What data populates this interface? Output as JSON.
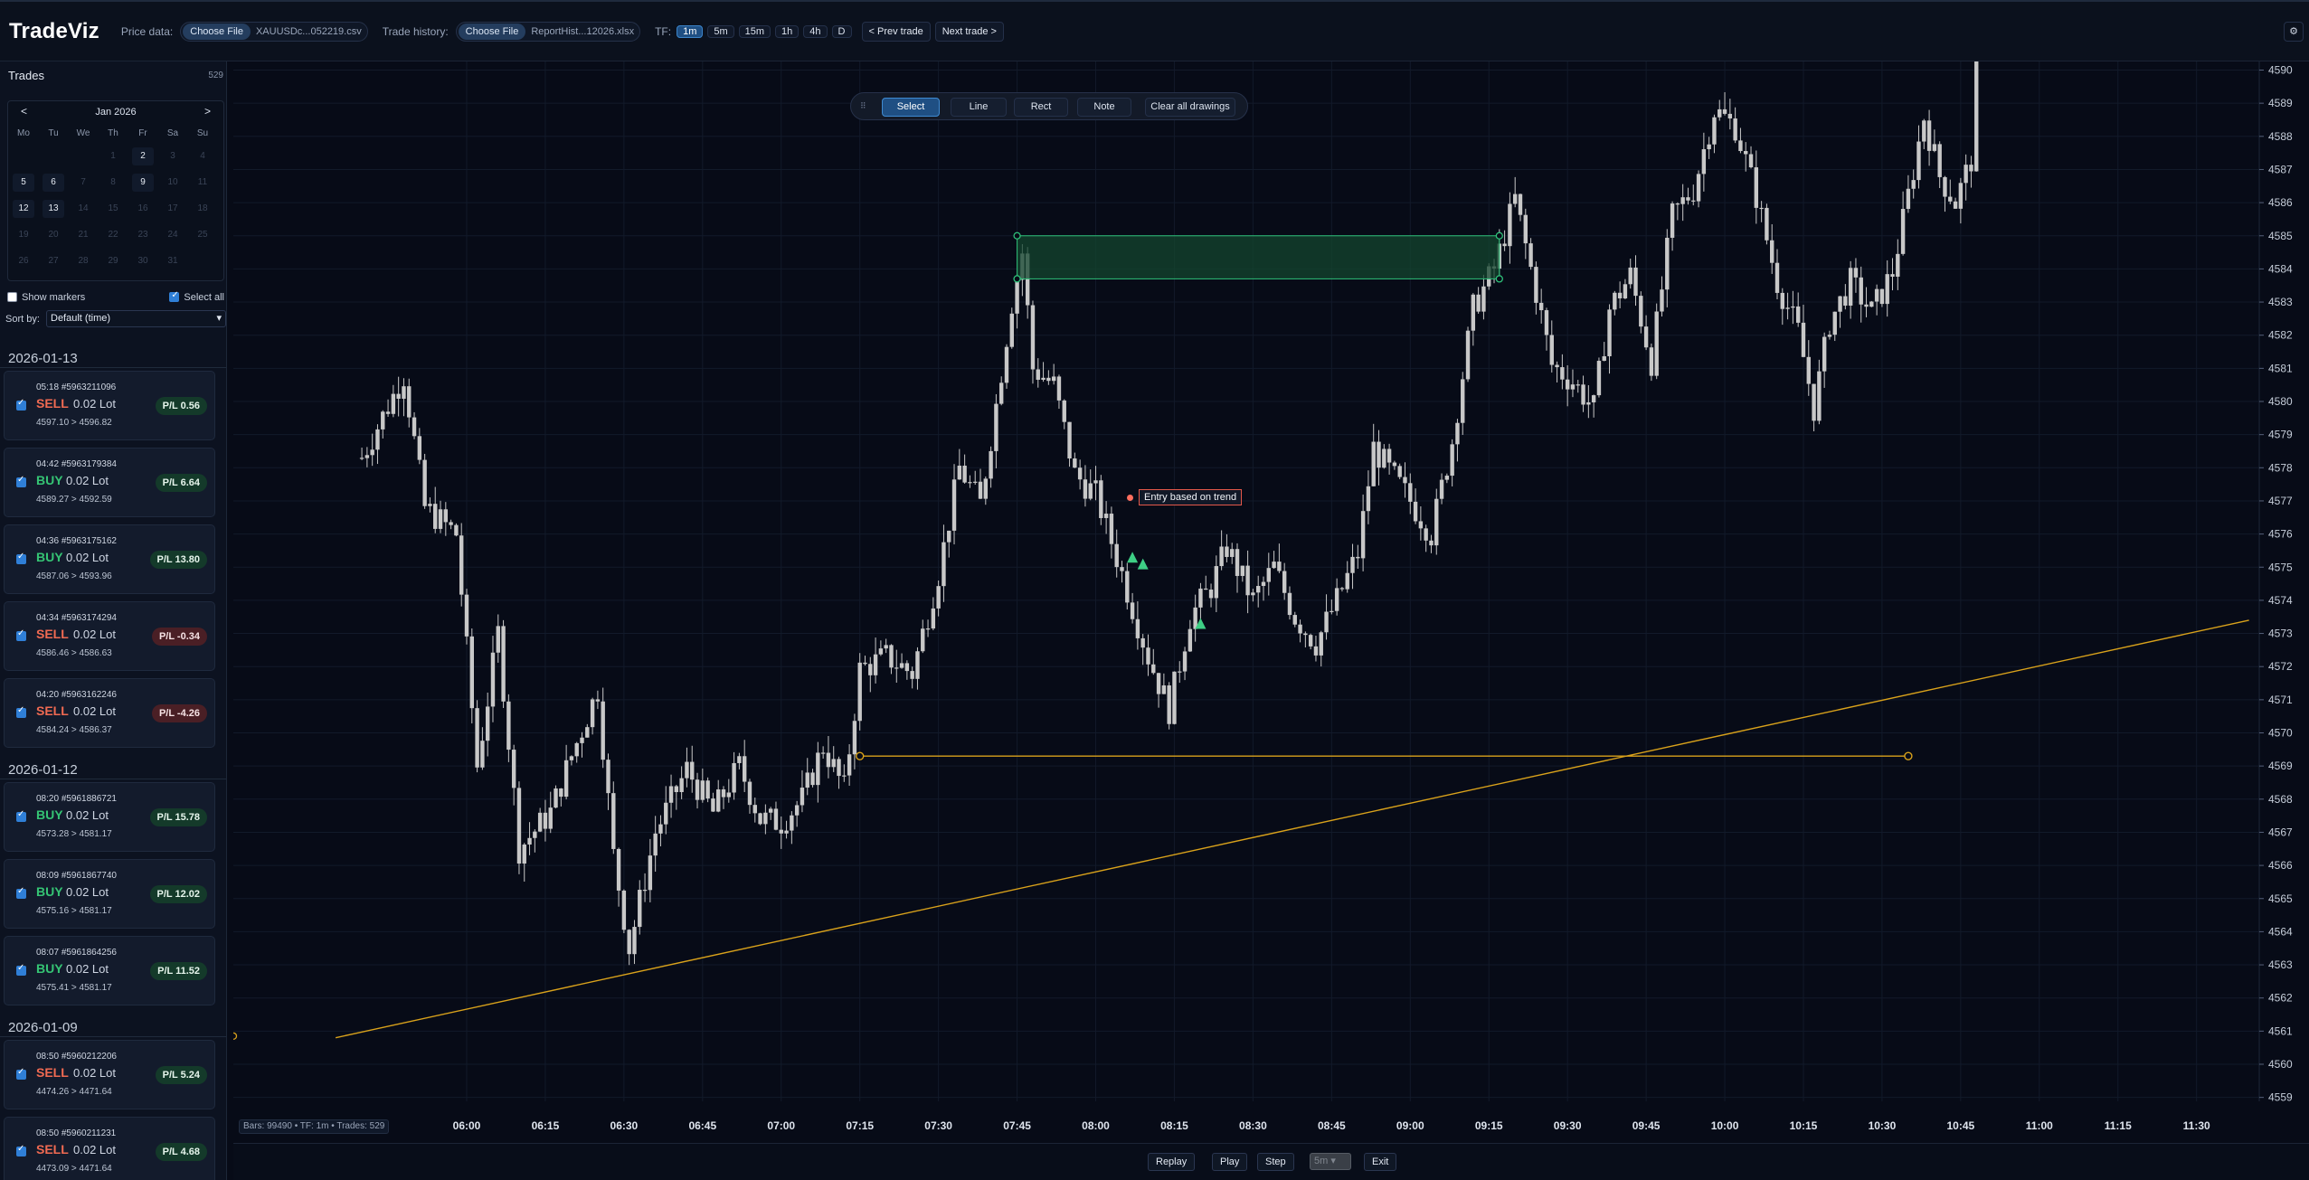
{
  "app": {
    "title": "TradeViz",
    "price_label": "Price data:",
    "price_file_button": "Choose File",
    "price_file_name": "XAUUSDc...052219.csv",
    "history_label": "Trade history:",
    "history_file_button": "Choose File",
    "history_file_name": "ReportHist...12026.xlsx",
    "tf_label": "TF:",
    "timeframes": [
      "1m",
      "5m",
      "15m",
      "1h",
      "4h",
      "D"
    ],
    "active_timeframe": "1m",
    "prev_trade": "< Prev trade",
    "next_trade": "Next trade >",
    "settings_icon": "gear-icon"
  },
  "sidebar": {
    "title": "Trades",
    "count": "529",
    "calendar": {
      "month": "Jan 2026",
      "prev": "<",
      "next": ">",
      "weekdays": [
        "Mo",
        "Tu",
        "We",
        "Th",
        "Fr",
        "Sa",
        "Su"
      ],
      "leading_blank_days": 3,
      "days_in_month": 31,
      "trade_days": [
        "2",
        "5",
        "6",
        "9",
        "12",
        "13"
      ]
    },
    "show_markers": "Show markers",
    "select_all": "Select all",
    "sort_label": "Sort by:",
    "sort_value": "Default (time)",
    "groups": [
      {
        "date": "2026-01-13",
        "trades": [
          {
            "time": "05:18",
            "id": "#5963211096",
            "side": "SELL",
            "lot": "0.02 Lot",
            "prices": "4597.10 > 4596.82",
            "pl": "P/L 0.56",
            "pl_sign": "pos"
          },
          {
            "time": "04:42",
            "id": "#5963179384",
            "side": "BUY",
            "lot": "0.02 Lot",
            "prices": "4589.27 > 4592.59",
            "pl": "P/L 6.64",
            "pl_sign": "pos"
          },
          {
            "time": "04:36",
            "id": "#5963175162",
            "side": "BUY",
            "lot": "0.02 Lot",
            "prices": "4587.06 > 4593.96",
            "pl": "P/L 13.80",
            "pl_sign": "pos"
          },
          {
            "time": "04:34",
            "id": "#5963174294",
            "side": "SELL",
            "lot": "0.02 Lot",
            "prices": "4586.46 > 4586.63",
            "pl": "P/L -0.34",
            "pl_sign": "neg"
          },
          {
            "time": "04:20",
            "id": "#5963162246",
            "side": "SELL",
            "lot": "0.02 Lot",
            "prices": "4584.24 > 4586.37",
            "pl": "P/L -4.26",
            "pl_sign": "neg"
          }
        ]
      },
      {
        "date": "2026-01-12",
        "trades": [
          {
            "time": "08:20",
            "id": "#5961886721",
            "side": "BUY",
            "lot": "0.02 Lot",
            "prices": "4573.28 > 4581.17",
            "pl": "P/L 15.78",
            "pl_sign": "pos"
          },
          {
            "time": "08:09",
            "id": "#5961867740",
            "side": "BUY",
            "lot": "0.02 Lot",
            "prices": "4575.16 > 4581.17",
            "pl": "P/L 12.02",
            "pl_sign": "pos"
          },
          {
            "time": "08:07",
            "id": "#5961864256",
            "side": "BUY",
            "lot": "0.02 Lot",
            "prices": "4575.41 > 4581.17",
            "pl": "P/L 11.52",
            "pl_sign": "pos"
          }
        ]
      },
      {
        "date": "2026-01-09",
        "trades": [
          {
            "time": "08:50",
            "id": "#5960212206",
            "side": "SELL",
            "lot": "0.02 Lot",
            "prices": "4474.26 > 4471.64",
            "pl": "P/L 5.24",
            "pl_sign": "pos"
          },
          {
            "time": "08:50",
            "id": "#5960211231",
            "side": "SELL",
            "lot": "0.02 Lot",
            "prices": "4473.09 > 4471.64",
            "pl": "P/L 4.68",
            "pl_sign": "pos"
          }
        ]
      }
    ]
  },
  "drawing_toolbar": {
    "handle": "⠿",
    "tools": [
      "Select",
      "Line",
      "Rect",
      "Note"
    ],
    "active_tool": "Select",
    "clear": "Clear all drawings"
  },
  "chart": {
    "status": "Bars: 99490 • TF: 1m • Trades: 529",
    "note_text": "Entry based on trend",
    "colors": {
      "candle": "#c8c8c8",
      "grid": "#121a2a",
      "trendline": "#d9a21b",
      "rect_fill": "#14462f",
      "rect_border": "#2fc27a",
      "marker": "#3ecf85",
      "note_border": "#e4584a"
    }
  },
  "chart_data": {
    "type": "candlestick",
    "x_unit": "time (1-minute bars)",
    "time_ticks": [
      "06:00",
      "06:15",
      "06:30",
      "06:45",
      "07:00",
      "07:15",
      "07:30",
      "07:45",
      "08:00",
      "08:15",
      "08:30",
      "08:45",
      "09:00",
      "09:15",
      "09:30",
      "09:45",
      "10:00",
      "10:15",
      "10:30",
      "10:45",
      "11:00",
      "11:15",
      "11:30"
    ],
    "price_ticks": [
      4590,
      4589,
      4588,
      4587,
      4586,
      4585,
      4584,
      4583,
      4582,
      4581,
      4580,
      4579,
      4578,
      4577,
      4576,
      4575,
      4574,
      4573,
      4572,
      4571,
      4570,
      4569,
      4568,
      4567,
      4566,
      4565,
      4564,
      4563,
      4562,
      4561,
      4560,
      4559
    ],
    "ylim": [
      4558.2,
      4590.4
    ],
    "price_path": [
      {
        "t": "05:40",
        "p": 4578.3
      },
      {
        "t": "05:48",
        "p": 4580.8
      },
      {
        "t": "05:52",
        "p": 4576.8
      },
      {
        "t": "05:58",
        "p": 4576.0
      },
      {
        "t": "06:02",
        "p": 4569.0
      },
      {
        "t": "06:06",
        "p": 4573.0
      },
      {
        "t": "06:10",
        "p": 4566.5
      },
      {
        "t": "06:16",
        "p": 4567.6
      },
      {
        "t": "06:20",
        "p": 4569.3
      },
      {
        "t": "06:25",
        "p": 4571.3
      },
      {
        "t": "06:28",
        "p": 4566.3
      },
      {
        "t": "06:31",
        "p": 4563.5
      },
      {
        "t": "06:36",
        "p": 4567.0
      },
      {
        "t": "06:42",
        "p": 4568.9
      },
      {
        "t": "06:47",
        "p": 4567.6
      },
      {
        "t": "06:52",
        "p": 4569.0
      },
      {
        "t": "06:56",
        "p": 4567.4
      },
      {
        "t": "07:00",
        "p": 4567.3
      },
      {
        "t": "07:04",
        "p": 4568.0
      },
      {
        "t": "07:08",
        "p": 4569.6
      },
      {
        "t": "07:12",
        "p": 4568.3
      },
      {
        "t": "07:15",
        "p": 4571.9
      },
      {
        "t": "07:20",
        "p": 4572.3
      },
      {
        "t": "07:25",
        "p": 4571.8
      },
      {
        "t": "07:30",
        "p": 4574.8
      },
      {
        "t": "07:34",
        "p": 4578.0
      },
      {
        "t": "07:38",
        "p": 4576.9
      },
      {
        "t": "07:41",
        "p": 4579.9
      },
      {
        "t": "07:44",
        "p": 4583.0
      },
      {
        "t": "07:46",
        "p": 4584.5
      },
      {
        "t": "07:48",
        "p": 4581.0
      },
      {
        "t": "07:52",
        "p": 4580.5
      },
      {
        "t": "07:56",
        "p": 4577.8
      },
      {
        "t": "08:00",
        "p": 4577.2
      },
      {
        "t": "08:04",
        "p": 4575.3
      },
      {
        "t": "08:10",
        "p": 4572.3
      },
      {
        "t": "08:14",
        "p": 4570.7
      },
      {
        "t": "08:18",
        "p": 4573.5
      },
      {
        "t": "08:22",
        "p": 4574.4
      },
      {
        "t": "08:25",
        "p": 4575.6
      },
      {
        "t": "08:30",
        "p": 4574.0
      },
      {
        "t": "08:34",
        "p": 4575.0
      },
      {
        "t": "08:38",
        "p": 4573.5
      },
      {
        "t": "08:42",
        "p": 4572.7
      },
      {
        "t": "08:46",
        "p": 4574.0
      },
      {
        "t": "08:50",
        "p": 4575.4
      },
      {
        "t": "08:53",
        "p": 4578.6
      },
      {
        "t": "08:56",
        "p": 4577.9
      },
      {
        "t": "09:00",
        "p": 4577.0
      },
      {
        "t": "09:04",
        "p": 4576.0
      },
      {
        "t": "09:08",
        "p": 4578.8
      },
      {
        "t": "09:12",
        "p": 4582.8
      },
      {
        "t": "09:16",
        "p": 4584.0
      },
      {
        "t": "09:20",
        "p": 4586.1
      },
      {
        "t": "09:24",
        "p": 4583.3
      },
      {
        "t": "09:27",
        "p": 4581.1
      },
      {
        "t": "09:31",
        "p": 4580.6
      },
      {
        "t": "09:35",
        "p": 4579.8
      },
      {
        "t": "09:38",
        "p": 4582.8
      },
      {
        "t": "09:42",
        "p": 4583.8
      },
      {
        "t": "09:46",
        "p": 4581.2
      },
      {
        "t": "09:50",
        "p": 4585.6
      },
      {
        "t": "09:54",
        "p": 4586.4
      },
      {
        "t": "09:58",
        "p": 4588.8
      },
      {
        "t": "10:02",
        "p": 4588.3
      },
      {
        "t": "10:06",
        "p": 4586.2
      },
      {
        "t": "10:10",
        "p": 4583.6
      },
      {
        "t": "10:14",
        "p": 4582.1
      },
      {
        "t": "10:17",
        "p": 4579.8
      },
      {
        "t": "10:20",
        "p": 4582.4
      },
      {
        "t": "10:24",
        "p": 4583.6
      },
      {
        "t": "10:28",
        "p": 4582.7
      },
      {
        "t": "10:32",
        "p": 4583.9
      },
      {
        "t": "10:35",
        "p": 4586.2
      },
      {
        "t": "10:38",
        "p": 4588.6
      },
      {
        "t": "10:41",
        "p": 4586.8
      },
      {
        "t": "10:44",
        "p": 4586.0
      },
      {
        "t": "10:47",
        "p": 4587.3
      },
      {
        "t": "10:48",
        "p": 4590.4
      }
    ],
    "markers": [
      {
        "t": "08:07",
        "p": 4575.3,
        "shape": "triangle-up"
      },
      {
        "t": "08:09",
        "p": 4575.1,
        "shape": "triangle-up"
      },
      {
        "t": "08:20",
        "p": 4573.3,
        "shape": "triangle-up"
      }
    ],
    "drawings": {
      "rect": {
        "t1": "07:45",
        "t2": "09:17",
        "p1": 4585.0,
        "p2": 4583.7
      },
      "hline": {
        "t1": "07:15",
        "t2": "10:35",
        "p": 4569.3
      },
      "trendline": {
        "t1": "05:35",
        "p1": 4560.8,
        "t2": "11:40",
        "p2": 4573.4
      }
    }
  },
  "playback": {
    "replay": "Replay",
    "play": "Play",
    "step": "Step",
    "speed": "5m",
    "exit": "Exit"
  }
}
